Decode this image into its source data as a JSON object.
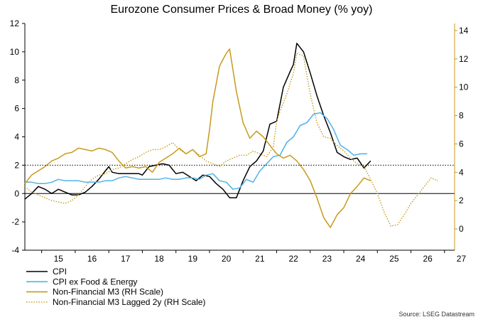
{
  "chart_data": {
    "type": "line",
    "title": "Eurozone Consumer Prices & Broad Money (% yoy)",
    "source": "Source: LSEG Datastream",
    "x_axis": {
      "ticks": [
        "15",
        "16",
        "17",
        "18",
        "19",
        "20",
        "21",
        "22",
        "23",
        "24",
        "25",
        "26",
        "27"
      ],
      "range": [
        2014.5,
        2027.3
      ]
    },
    "y_left": {
      "ticks": [
        "-4",
        "-2",
        "0",
        "2",
        "4",
        "6",
        "8",
        "10",
        "12"
      ],
      "range": [
        -4,
        12
      ]
    },
    "y_right": {
      "ticks": [
        "0",
        "2",
        "4",
        "6",
        "8",
        "10",
        "12",
        "14"
      ],
      "range": [
        -1.5,
        14.5
      ]
    },
    "reference_lines": [
      {
        "axis": "left",
        "value": 0,
        "style": "solid"
      },
      {
        "axis": "left",
        "value": 2,
        "style": "dotted"
      }
    ],
    "series": [
      {
        "name": "CPI",
        "axis": "left",
        "color": "#000000",
        "dash": "solid",
        "x": [
          2014.5,
          2014.7,
          2014.9,
          2015.1,
          2015.3,
          2015.5,
          2015.7,
          2015.9,
          2016.1,
          2016.3,
          2016.5,
          2016.7,
          2016.9,
          2017.0,
          2017.1,
          2017.3,
          2017.5,
          2017.7,
          2017.9,
          2018.0,
          2018.2,
          2018.4,
          2018.6,
          2018.8,
          2019.0,
          2019.2,
          2019.4,
          2019.6,
          2019.8,
          2020.0,
          2020.2,
          2020.4,
          2020.6,
          2020.8,
          2021.0,
          2021.2,
          2021.4,
          2021.6,
          2021.8,
          2022.0,
          2022.2,
          2022.4,
          2022.5,
          2022.6,
          2022.8,
          2023.0,
          2023.2,
          2023.4,
          2023.6,
          2023.8,
          2024.0,
          2024.2,
          2024.4,
          2024.6,
          2024.8
        ],
        "values": [
          -0.4,
          0.0,
          0.5,
          0.3,
          0.0,
          0.3,
          0.1,
          -0.1,
          -0.1,
          0.1,
          0.5,
          1.0,
          1.6,
          1.9,
          1.5,
          1.4,
          1.4,
          1.4,
          1.4,
          1.3,
          1.9,
          2.0,
          2.1,
          2.0,
          1.4,
          1.5,
          1.2,
          0.9,
          1.3,
          1.2,
          0.7,
          0.3,
          -0.3,
          -0.3,
          0.9,
          1.9,
          2.3,
          3.0,
          4.9,
          5.1,
          7.5,
          8.6,
          9.1,
          10.6,
          10.0,
          8.5,
          6.9,
          5.5,
          4.3,
          2.9,
          2.6,
          2.4,
          2.5,
          1.8,
          2.3
        ]
      },
      {
        "name": "CPI ex Food & Energy",
        "axis": "left",
        "color": "#4db3e6",
        "dash": "solid",
        "x": [
          2014.5,
          2014.7,
          2014.9,
          2015.1,
          2015.3,
          2015.5,
          2015.7,
          2015.9,
          2016.1,
          2016.3,
          2016.5,
          2016.7,
          2016.9,
          2017.1,
          2017.3,
          2017.5,
          2017.7,
          2017.9,
          2018.1,
          2018.3,
          2018.5,
          2018.7,
          2018.9,
          2019.1,
          2019.3,
          2019.5,
          2019.7,
          2019.9,
          2020.1,
          2020.3,
          2020.5,
          2020.7,
          2020.9,
          2021.1,
          2021.3,
          2021.5,
          2021.7,
          2021.9,
          2022.1,
          2022.3,
          2022.5,
          2022.7,
          2022.9,
          2023.1,
          2023.3,
          2023.5,
          2023.7,
          2023.9,
          2024.1,
          2024.3,
          2024.5,
          2024.7
        ],
        "values": [
          0.8,
          0.8,
          0.7,
          0.7,
          0.8,
          1.0,
          0.9,
          0.9,
          0.9,
          0.8,
          0.8,
          0.8,
          0.9,
          0.9,
          1.1,
          1.2,
          1.1,
          1.0,
          1.0,
          1.0,
          1.0,
          1.1,
          1.0,
          1.0,
          1.1,
          1.1,
          1.0,
          1.3,
          1.4,
          0.9,
          0.8,
          0.3,
          0.4,
          1.0,
          0.8,
          1.6,
          2.1,
          2.6,
          2.7,
          3.6,
          4.0,
          4.8,
          5.0,
          5.6,
          5.7,
          5.3,
          4.5,
          3.4,
          3.1,
          2.7,
          2.8,
          2.8
        ]
      },
      {
        "name": "Non-Financial M3 (RH Scale)",
        "axis": "right",
        "color": "#c89a1a",
        "dash": "solid",
        "x": [
          2014.5,
          2014.7,
          2014.9,
          2015.1,
          2015.3,
          2015.5,
          2015.7,
          2015.9,
          2016.1,
          2016.3,
          2016.5,
          2016.7,
          2016.9,
          2017.1,
          2017.3,
          2017.5,
          2017.7,
          2017.9,
          2018.1,
          2018.3,
          2018.5,
          2018.7,
          2018.9,
          2019.1,
          2019.3,
          2019.5,
          2019.7,
          2019.9,
          2020.0,
          2020.1,
          2020.3,
          2020.5,
          2020.6,
          2020.8,
          2021.0,
          2021.2,
          2021.4,
          2021.6,
          2021.8,
          2022.0,
          2022.2,
          2022.4,
          2022.6,
          2022.8,
          2023.0,
          2023.2,
          2023.4,
          2023.6,
          2023.8,
          2024.0,
          2024.2,
          2024.4,
          2024.6,
          2024.8
        ],
        "values": [
          3.2,
          3.8,
          4.1,
          4.4,
          4.8,
          5.0,
          5.3,
          5.4,
          5.7,
          5.6,
          5.5,
          5.7,
          5.6,
          5.4,
          4.8,
          4.3,
          4.4,
          4.3,
          4.4,
          4.0,
          4.7,
          5.0,
          5.3,
          5.7,
          5.3,
          5.6,
          5.1,
          5.3,
          7.0,
          9.0,
          11.5,
          12.4,
          12.7,
          9.7,
          7.5,
          6.4,
          6.9,
          6.5,
          5.9,
          5.3,
          5.0,
          5.2,
          4.8,
          4.2,
          3.4,
          2.2,
          0.8,
          0.1,
          1.0,
          1.5,
          2.5,
          3.0,
          3.6,
          3.4
        ]
      },
      {
        "name": "Non-Financial M3 Lagged 2y (RH Scale)",
        "axis": "right",
        "color": "#c89a1a",
        "dash": "dotted",
        "x": [
          2014.5,
          2014.7,
          2014.9,
          2015.1,
          2015.3,
          2015.5,
          2015.7,
          2015.9,
          2016.1,
          2016.3,
          2016.5,
          2016.7,
          2016.9,
          2017.1,
          2017.3,
          2017.5,
          2017.7,
          2017.9,
          2018.1,
          2018.3,
          2018.5,
          2018.7,
          2018.9,
          2019.1,
          2019.3,
          2019.5,
          2019.7,
          2019.9,
          2020.1,
          2020.3,
          2020.5,
          2020.7,
          2020.9,
          2021.1,
          2021.3,
          2021.5,
          2021.7,
          2021.9,
          2022.0,
          2022.1,
          2022.3,
          2022.5,
          2022.6,
          2022.8,
          2023.0,
          2023.2,
          2023.4,
          2023.6,
          2023.8,
          2024.0,
          2024.2,
          2024.4,
          2024.6,
          2024.8,
          2025.0,
          2025.2,
          2025.4,
          2025.6,
          2025.8,
          2026.0,
          2026.2,
          2026.4,
          2026.6,
          2026.8
        ],
        "values": [
          3.0,
          2.6,
          2.4,
          2.2,
          2.0,
          1.9,
          1.8,
          2.0,
          2.4,
          3.0,
          3.5,
          3.8,
          3.9,
          4.2,
          4.3,
          4.6,
          4.9,
          5.1,
          5.4,
          5.6,
          5.6,
          5.8,
          6.1,
          5.6,
          5.3,
          5.6,
          5.2,
          4.8,
          4.6,
          4.4,
          4.8,
          5.0,
          5.2,
          5.2,
          5.5,
          5.3,
          5.1,
          5.8,
          7.6,
          8.3,
          9.5,
          11.0,
          12.4,
          12.2,
          9.5,
          7.5,
          6.5,
          6.4,
          5.9,
          5.5,
          5.0,
          4.6,
          4.4,
          3.5,
          2.5,
          1.2,
          0.2,
          0.3,
          1.0,
          1.8,
          2.4,
          3.0,
          3.6,
          3.4
        ]
      }
    ]
  }
}
